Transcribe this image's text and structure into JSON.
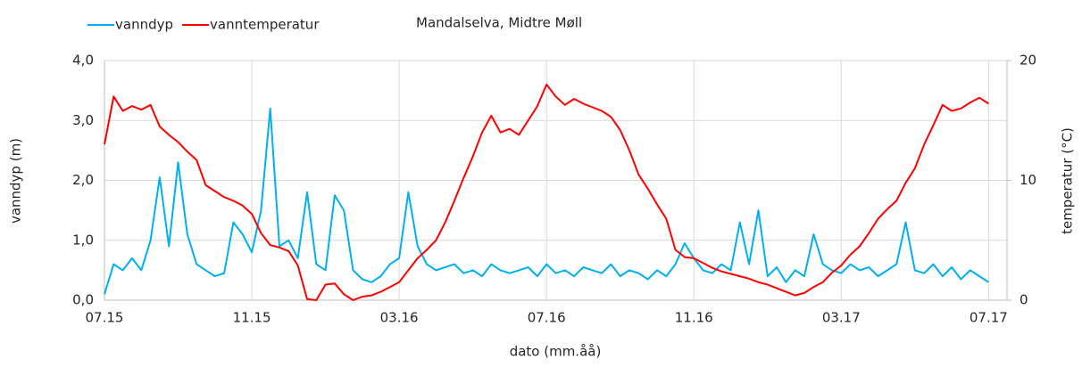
{
  "chart_data": {
    "type": "line",
    "title": "Mandalselva, Midtre Møll",
    "xlabel": "dato (mm.åå)",
    "ylabel": "vanndyp (m)",
    "y2label": "temperatur (°C)",
    "x": [
      0,
      0.25,
      0.5,
      0.75,
      1,
      1.25,
      1.5,
      1.75,
      2,
      2.25,
      2.5,
      2.75,
      3,
      3.25,
      3.5,
      3.75,
      4,
      4.25,
      4.5,
      4.75,
      5,
      5.25,
      5.5,
      5.75,
      6,
      6.25,
      6.5,
      6.75,
      7,
      7.25,
      7.5,
      7.75,
      8,
      8.25,
      8.5,
      8.75,
      9,
      9.25,
      9.5,
      9.75,
      10,
      10.25,
      10.5,
      10.75,
      11,
      11.25,
      11.5,
      11.75,
      12,
      12.25,
      12.5,
      12.75,
      13,
      13.25,
      13.5,
      13.75,
      14,
      14.25,
      14.5,
      14.75,
      15,
      15.25,
      15.5,
      15.75,
      16,
      16.25,
      16.5,
      16.75,
      17,
      17.25,
      17.5,
      17.75,
      18,
      18.25,
      18.5,
      18.75,
      19,
      19.25,
      19.5,
      19.75,
      20,
      20.25,
      20.5,
      20.75,
      21,
      21.25,
      21.5,
      21.75,
      22,
      22.25,
      22.5,
      22.75,
      23,
      23.25,
      23.5,
      23.75,
      24
    ],
    "series": [
      {
        "name": "vanndyp",
        "color": "#00b0f0",
        "values": [
          0.1,
          0.6,
          0.5,
          0.7,
          0.5,
          1.0,
          2.05,
          0.9,
          2.3,
          1.1,
          0.6,
          0.5,
          0.4,
          0.45,
          1.3,
          1.1,
          0.8,
          1.5,
          3.2,
          0.9,
          1.0,
          0.7,
          1.8,
          0.6,
          0.5,
          1.75,
          1.5,
          0.5,
          0.35,
          0.3,
          0.4,
          0.6,
          0.7,
          1.8,
          0.9,
          0.6,
          0.5,
          0.55,
          0.6,
          0.45,
          0.5,
          0.4,
          0.6,
          0.5,
          0.45,
          0.5,
          0.55,
          0.4,
          0.6,
          0.45,
          0.5,
          0.4,
          0.55,
          0.5,
          0.45,
          0.6,
          0.4,
          0.5,
          0.45,
          0.35,
          0.5,
          0.4,
          0.6,
          0.95,
          0.7,
          0.5,
          0.45,
          0.6,
          0.5,
          1.3,
          0.6,
          1.5,
          0.4,
          0.55,
          0.3,
          0.5,
          0.4,
          1.1,
          0.6,
          0.5,
          0.45,
          0.6,
          0.5,
          0.55,
          0.4,
          0.5,
          0.6,
          1.3,
          0.5,
          0.45,
          0.6,
          0.4,
          0.55,
          0.35,
          0.5,
          0.4,
          0.3
        ]
      },
      {
        "name": "vanntemperatur",
        "color": "#ff0000",
        "axis": "y2",
        "values": [
          13,
          17,
          15.8,
          16.2,
          15.9,
          16.3,
          14.5,
          13.8,
          13.2,
          12.4,
          11.7,
          9.6,
          9.1,
          8.6,
          8.3,
          7.9,
          7.2,
          5.6,
          4.6,
          4.4,
          4.1,
          2.9,
          0.1,
          0,
          1.3,
          1.4,
          0.5,
          0,
          0.3,
          0.4,
          0.7,
          1.1,
          1.5,
          2.5,
          3.5,
          4.2,
          5,
          6.5,
          8.3,
          10.2,
          12,
          14,
          15.4,
          14,
          14.3,
          13.8,
          15,
          16.2,
          18,
          17,
          16.3,
          16.8,
          16.4,
          16.1,
          15.8,
          15.3,
          14.2,
          12.5,
          10.5,
          9.3,
          8,
          6.8,
          4.2,
          3.6,
          3.5,
          3.1,
          2.7,
          2.4,
          2.2,
          2,
          1.8,
          1.5,
          1.3,
          1,
          0.7,
          0.4,
          0.6,
          1.1,
          1.5,
          2.3,
          2.9,
          3.8,
          4.5,
          5.6,
          6.8,
          7.6,
          8.3,
          9.8,
          11,
          13,
          14.6,
          16.3,
          15.8,
          16,
          16.5,
          16.9,
          16.4
        ]
      }
    ],
    "xlim": [
      0,
      24.5
    ],
    "xticks": [
      {
        "value": 0,
        "label": "07.15"
      },
      {
        "value": 4,
        "label": "11.15"
      },
      {
        "value": 8,
        "label": "03.16"
      },
      {
        "value": 12,
        "label": "07.16"
      },
      {
        "value": 16,
        "label": "11.16"
      },
      {
        "value": 20,
        "label": "03.17"
      },
      {
        "value": 24,
        "label": "07.17"
      }
    ],
    "ylim": [
      0,
      4
    ],
    "yticks": [
      {
        "value": 0,
        "label": "0,0"
      },
      {
        "value": 1,
        "label": "1,0"
      },
      {
        "value": 2,
        "label": "2,0"
      },
      {
        "value": 3,
        "label": "3,0"
      },
      {
        "value": 4,
        "label": "4,0"
      }
    ],
    "y2lim": [
      0,
      20
    ],
    "y2ticks": [
      0,
      10,
      20
    ],
    "grid": true,
    "legend": "top-left"
  }
}
